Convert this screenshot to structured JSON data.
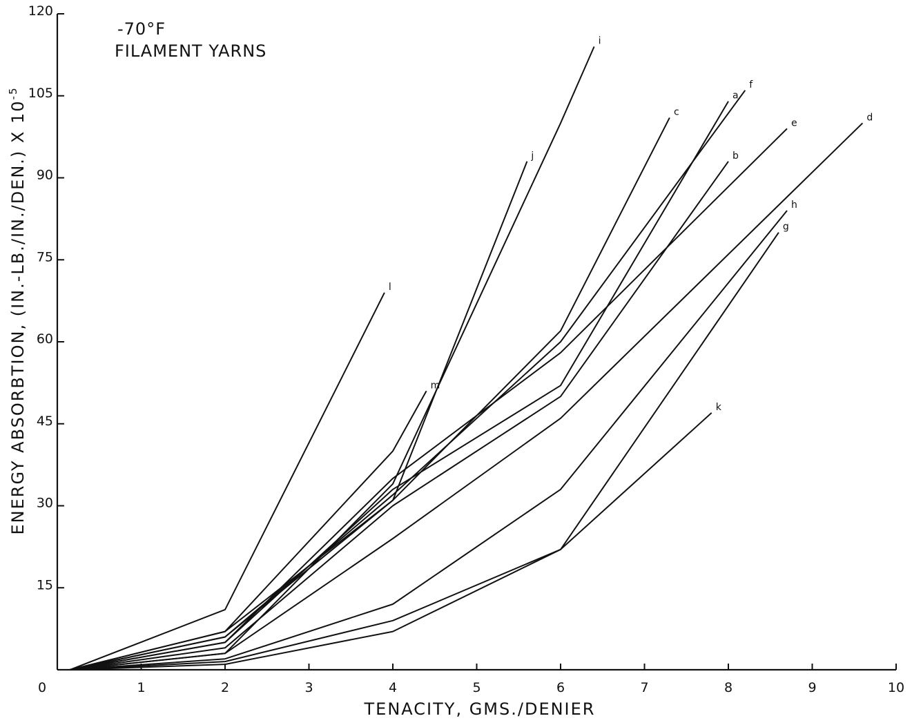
{
  "chart_data": {
    "type": "line",
    "annotations": [
      "-70°F",
      "FILAMENT YARNS"
    ],
    "xlabel": "TENACITY, GMS./DENIER",
    "ylabel_main": "ENERGY ABSORBTION, (IN.-LB./IN./DEN.) X 10",
    "ylabel_exponent": "-5",
    "xlim": [
      0,
      10
    ],
    "ylim": [
      0,
      120
    ],
    "x_ticks": [
      0,
      1,
      2,
      3,
      4,
      5,
      6,
      7,
      8,
      9,
      10
    ],
    "x_tick_labels": [
      "0",
      "1",
      "2",
      "3",
      "4",
      "5",
      "6",
      "7",
      "8",
      "9",
      "10"
    ],
    "y_ticks": [
      15,
      30,
      45,
      60,
      75,
      90,
      105,
      120
    ],
    "y_tick_labels": [
      "15",
      "30",
      "45",
      "60",
      "75",
      "90",
      "105",
      "120"
    ],
    "grid": false,
    "series": [
      {
        "name": "a",
        "points": [
          [
            0.15,
            0
          ],
          [
            2,
            5
          ],
          [
            4,
            33
          ],
          [
            6,
            52
          ],
          [
            8,
            104
          ]
        ]
      },
      {
        "name": "b",
        "points": [
          [
            0.15,
            0
          ],
          [
            2,
            4
          ],
          [
            4,
            30
          ],
          [
            6,
            50
          ],
          [
            8,
            93
          ]
        ]
      },
      {
        "name": "c",
        "points": [
          [
            0.15,
            0
          ],
          [
            2,
            7
          ],
          [
            4,
            31
          ],
          [
            6,
            62
          ],
          [
            7.3,
            101
          ]
        ]
      },
      {
        "name": "d",
        "points": [
          [
            0.15,
            0
          ],
          [
            2,
            3
          ],
          [
            4,
            24
          ],
          [
            6,
            46
          ],
          [
            9.6,
            100
          ]
        ]
      },
      {
        "name": "e",
        "points": [
          [
            0.15,
            0
          ],
          [
            2,
            5
          ],
          [
            4,
            35
          ],
          [
            6,
            58
          ],
          [
            8.7,
            99
          ]
        ]
      },
      {
        "name": "f",
        "points": [
          [
            0.15,
            0
          ],
          [
            2,
            6
          ],
          [
            4,
            32
          ],
          [
            6,
            60
          ],
          [
            8.2,
            106
          ]
        ]
      },
      {
        "name": "g",
        "points": [
          [
            0.15,
            0
          ],
          [
            2,
            1
          ],
          [
            4,
            7
          ],
          [
            6,
            22
          ],
          [
            8.6,
            80
          ]
        ]
      },
      {
        "name": "h",
        "points": [
          [
            0.15,
            0
          ],
          [
            2,
            2
          ],
          [
            4,
            12
          ],
          [
            6,
            33
          ],
          [
            8.7,
            84
          ]
        ]
      },
      {
        "name": "i",
        "points": [
          [
            0.15,
            0
          ],
          [
            2,
            3
          ],
          [
            4,
            34
          ],
          [
            6,
            100
          ],
          [
            6.4,
            114
          ]
        ]
      },
      {
        "name": "j",
        "points": [
          [
            0.15,
            0
          ],
          [
            2,
            6
          ],
          [
            4,
            31
          ],
          [
            5.6,
            93
          ]
        ]
      },
      {
        "name": "k",
        "points": [
          [
            0.15,
            0
          ],
          [
            2,
            1.5
          ],
          [
            4,
            9
          ],
          [
            6,
            22
          ],
          [
            7.8,
            47
          ]
        ]
      },
      {
        "name": "l",
        "points": [
          [
            0.15,
            0
          ],
          [
            2,
            11
          ],
          [
            3.9,
            69
          ]
        ]
      },
      {
        "name": "m",
        "points": [
          [
            0.15,
            0
          ],
          [
            2,
            7
          ],
          [
            4,
            40
          ],
          [
            4.4,
            51
          ]
        ]
      }
    ]
  }
}
